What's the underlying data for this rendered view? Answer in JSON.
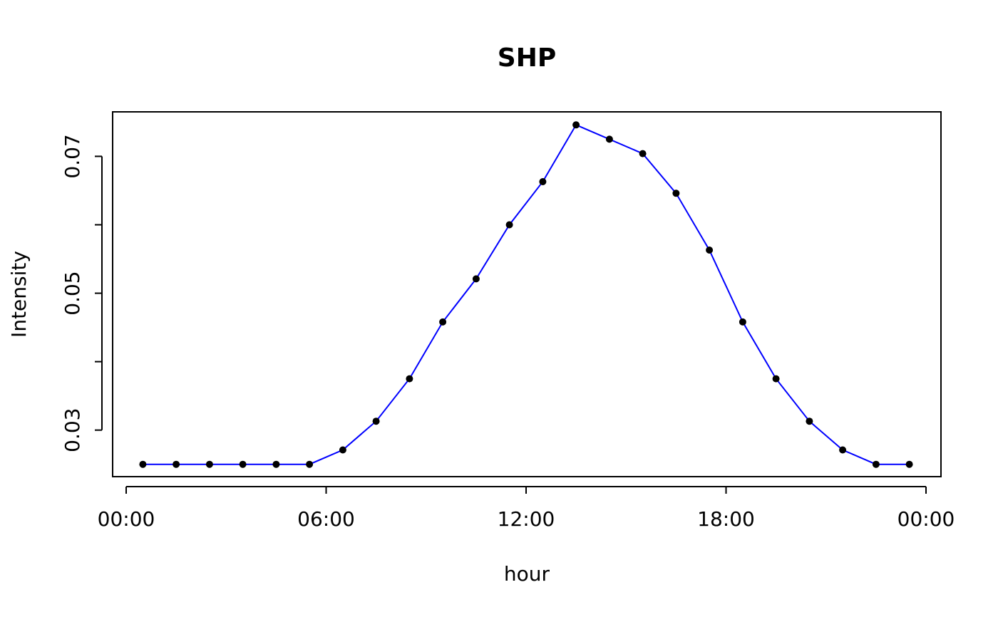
{
  "chart_data": {
    "type": "line",
    "title": "SHP",
    "xlabel": "hour",
    "ylabel": "Intensity",
    "x_tick_labels": [
      "00:00",
      "06:00",
      "12:00",
      "18:00",
      "00:00"
    ],
    "x_ticks_hours": [
      0,
      6,
      12,
      18,
      24
    ],
    "y_tick_labels": [
      "0.03",
      "0.05",
      "0.07"
    ],
    "y_ticks": [
      0.03,
      0.04,
      0.05,
      0.06,
      0.07
    ],
    "xlim": [
      0,
      24
    ],
    "ylim": [
      0.0232,
      0.0765
    ],
    "grid": false,
    "line_color": "#0000ff",
    "point_color": "#000000",
    "series": [
      {
        "x_hours": [
          0.5,
          1.5,
          2.5,
          3.5,
          4.5,
          5.5,
          6.5,
          7.5,
          8.5,
          9.5,
          10.5,
          11.5,
          12.5,
          13.5,
          14.5,
          15.5,
          16.5,
          17.5,
          18.5,
          19.5,
          20.5,
          21.5,
          22.5,
          23.5
        ],
        "values": [
          0.025,
          0.025,
          0.025,
          0.025,
          0.025,
          0.025,
          0.0271,
          0.0313,
          0.0375,
          0.0458,
          0.0521,
          0.06,
          0.0663,
          0.0746,
          0.0725,
          0.0704,
          0.0646,
          0.0563,
          0.0458,
          0.0375,
          0.0313,
          0.0271,
          0.025,
          0.025
        ]
      }
    ]
  }
}
